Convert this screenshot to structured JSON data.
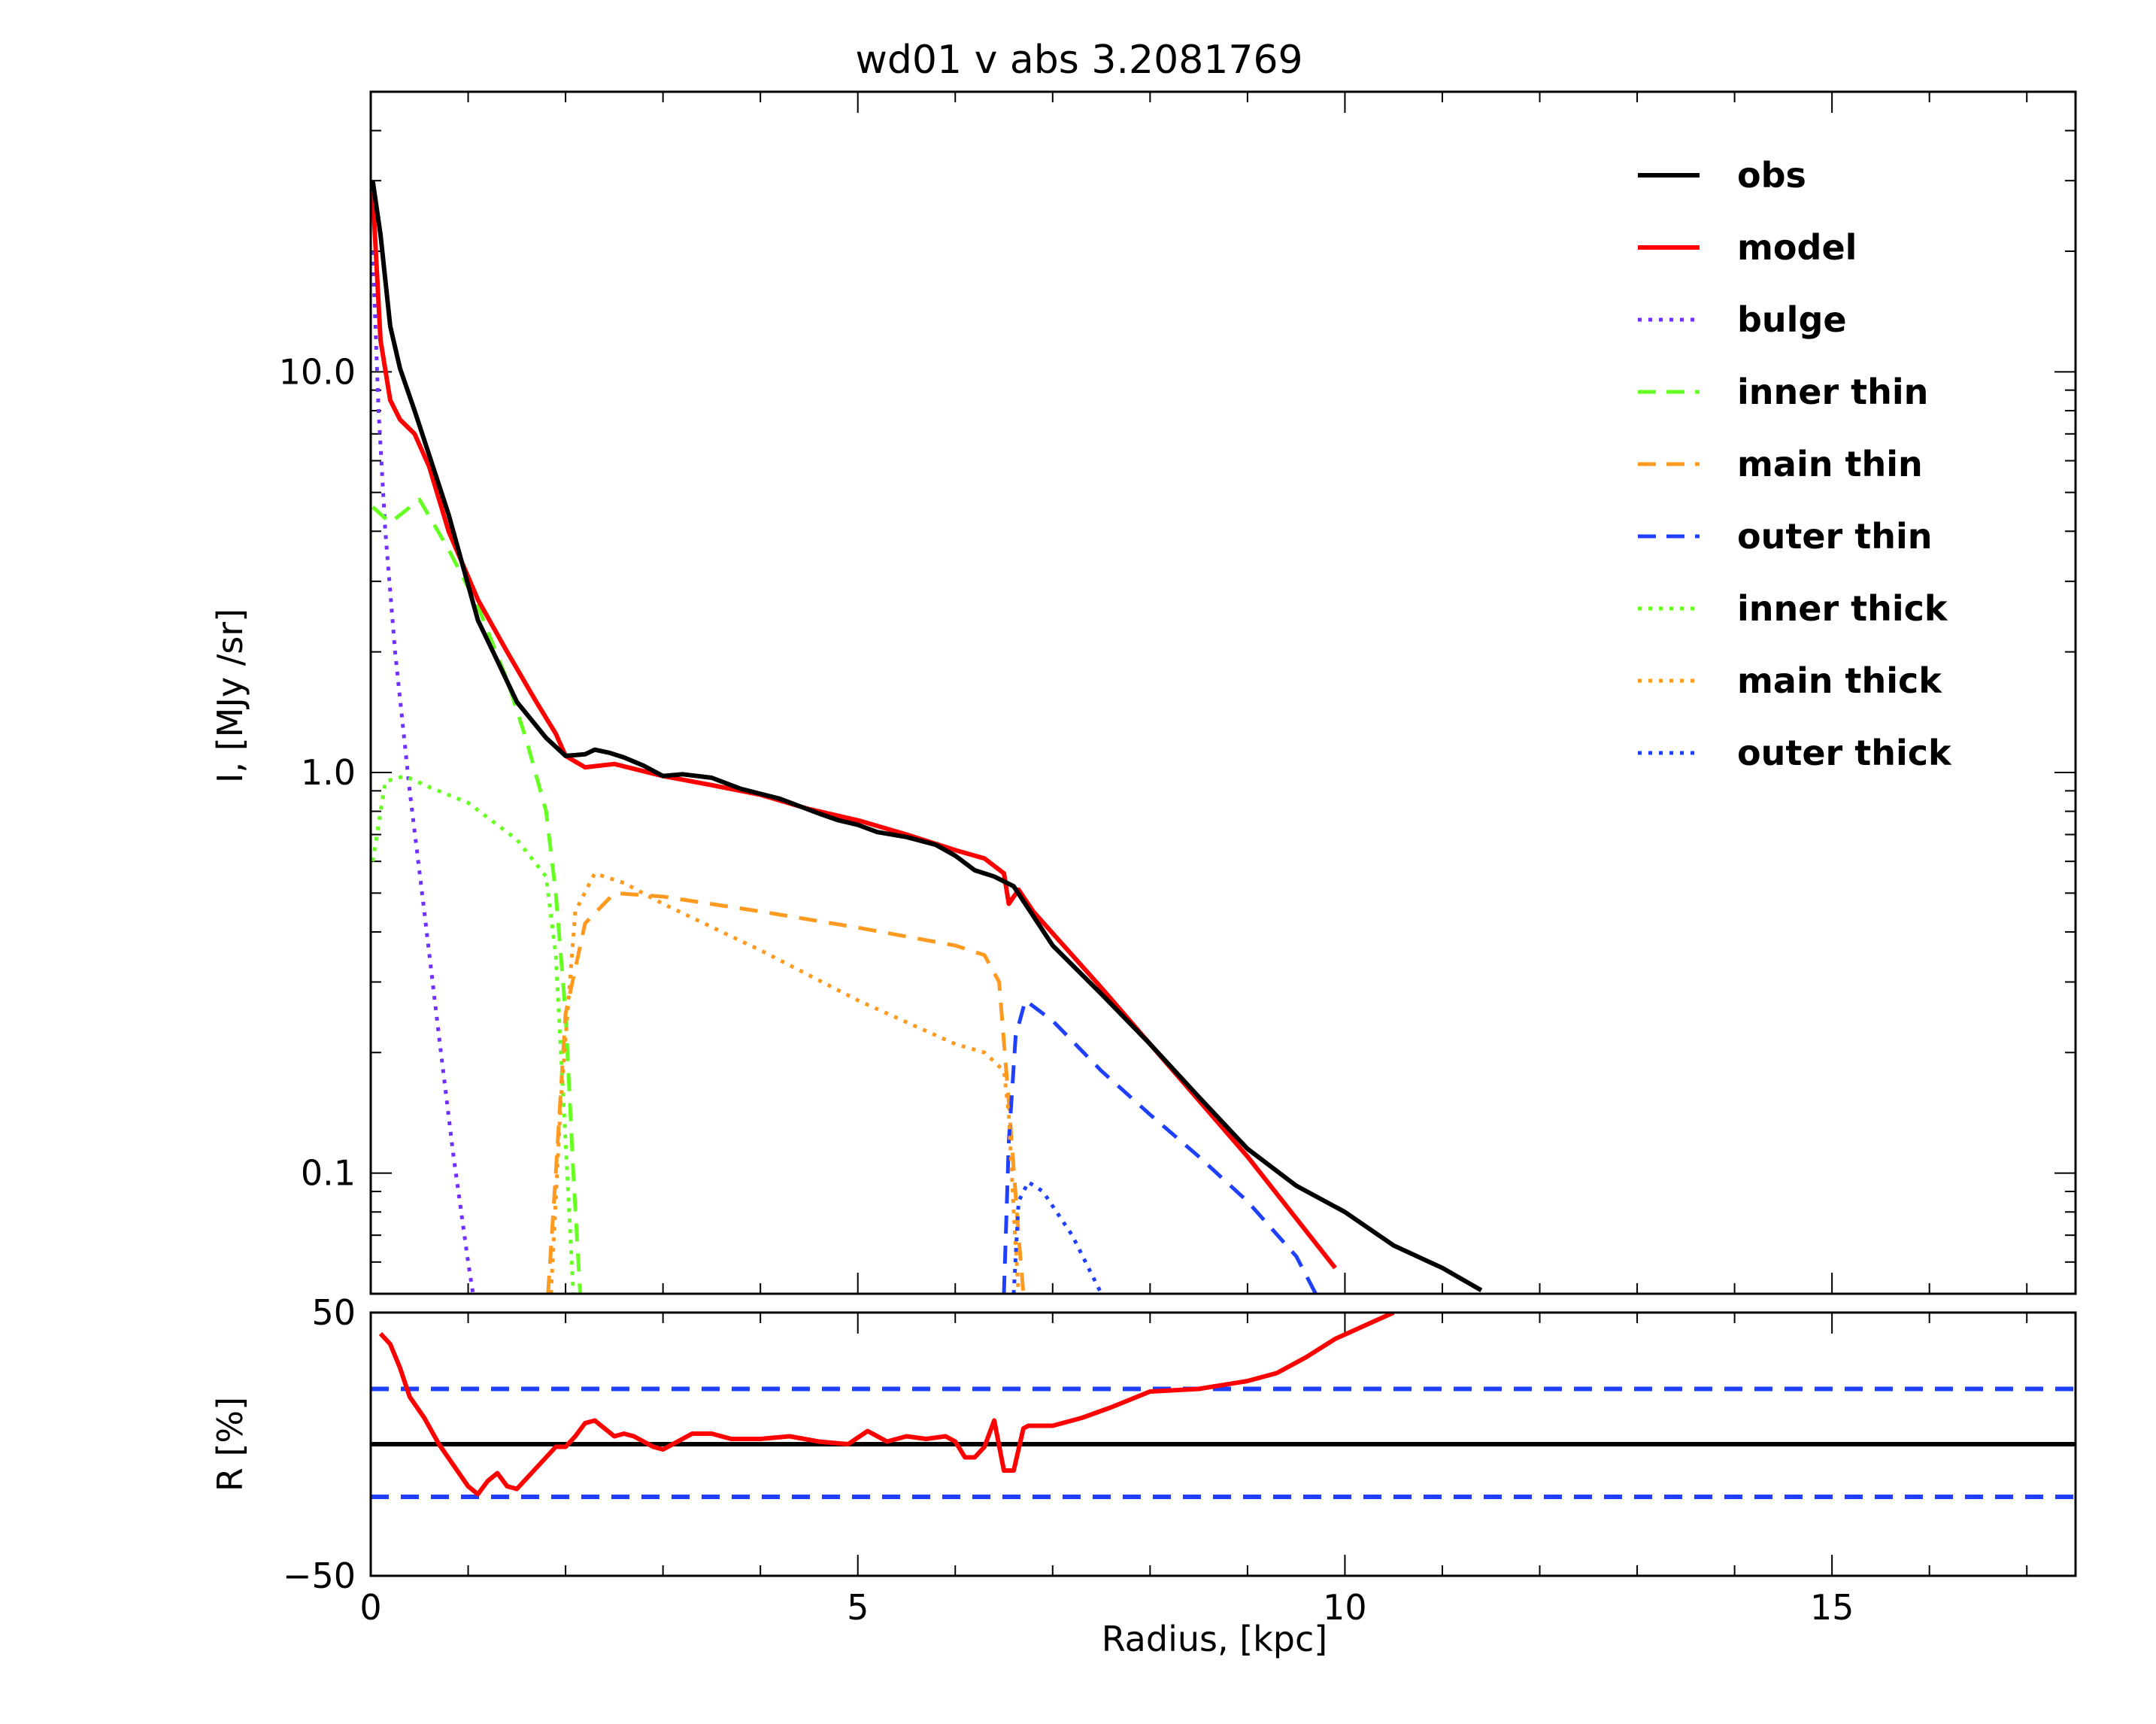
{
  "chart_data": [
    {
      "type": "line",
      "title": "wd01 v abs 3.2081769",
      "xlabel": "",
      "ylabel": "I, [MJy /sr]",
      "yscale": "log",
      "xlim": [
        0,
        17.5
      ],
      "ylim": [
        0.05,
        50
      ],
      "yticks": [
        {
          "value": 0.1,
          "label": "0.1"
        },
        {
          "value": 1.0,
          "label": "1.0"
        },
        {
          "value": 10.0,
          "label": "10.0"
        }
      ],
      "legend_position": "top-right",
      "series": [
        {
          "name": "obs",
          "color": "#000000",
          "dash": "solid",
          "x": [
            0.02,
            0.1,
            0.2,
            0.3,
            0.45,
            0.6,
            0.8,
            1.1,
            1.3,
            1.5,
            1.8,
            2.0,
            2.2,
            2.3,
            2.45,
            2.6,
            2.8,
            3.0,
            3.2,
            3.5,
            3.8,
            4.2,
            4.6,
            4.8,
            5.0,
            5.2,
            5.5,
            5.8,
            6.0,
            6.2,
            6.4,
            6.6,
            7.0,
            7.5,
            8.0,
            8.5,
            9.0,
            9.5,
            10.0,
            10.5,
            11.0,
            11.4
          ],
          "y": [
            30,
            22,
            13,
            10.2,
            8.0,
            6.2,
            4.4,
            2.4,
            1.9,
            1.5,
            1.22,
            1.1,
            1.11,
            1.14,
            1.12,
            1.09,
            1.04,
            0.98,
            0.99,
            0.97,
            0.91,
            0.86,
            0.79,
            0.76,
            0.74,
            0.71,
            0.69,
            0.66,
            0.62,
            0.57,
            0.55,
            0.52,
            0.37,
            0.28,
            0.21,
            0.155,
            0.115,
            0.093,
            0.08,
            0.066,
            0.058,
            0.051
          ]
        },
        {
          "name": "model",
          "color": "#ff0000",
          "dash": "solid",
          "x": [
            0.02,
            0.1,
            0.2,
            0.3,
            0.45,
            0.6,
            0.8,
            1.1,
            1.4,
            1.7,
            1.9,
            2.0,
            2.2,
            2.5,
            3.0,
            3.5,
            4.0,
            4.5,
            5.0,
            5.5,
            6.0,
            6.3,
            6.5,
            6.55,
            6.65,
            6.8,
            7.5,
            8.0,
            9.0,
            9.9
          ],
          "y": [
            28,
            12,
            8.5,
            7.6,
            7.0,
            5.8,
            4.0,
            2.7,
            2.0,
            1.5,
            1.25,
            1.1,
            1.03,
            1.05,
            0.98,
            0.93,
            0.88,
            0.81,
            0.76,
            0.7,
            0.64,
            0.61,
            0.56,
            0.47,
            0.51,
            0.45,
            0.29,
            0.21,
            0.11,
            0.058
          ]
        },
        {
          "name": "bulge",
          "color": "#7030ff",
          "dash": "dotted",
          "x": [
            0.02,
            0.08,
            0.15,
            0.25,
            0.4,
            0.55,
            0.7,
            0.85,
            1.0,
            1.05
          ],
          "y": [
            20,
            8,
            4,
            2.0,
            0.9,
            0.45,
            0.22,
            0.11,
            0.06,
            0.05
          ]
        },
        {
          "name": "inner thin",
          "color": "#66ff22",
          "dash": "dashed",
          "x": [
            0.02,
            0.2,
            0.5,
            0.8,
            1.1,
            1.4,
            1.6,
            1.8,
            1.9,
            2.0,
            2.08,
            2.15
          ],
          "y": [
            4.6,
            4.2,
            4.8,
            3.6,
            2.6,
            1.7,
            1.2,
            0.8,
            0.5,
            0.25,
            0.1,
            0.05
          ]
        },
        {
          "name": "main thin",
          "color": "#ff9a20",
          "dash": "dashed",
          "x": [
            1.82,
            1.9,
            2.0,
            2.2,
            2.5,
            3.0,
            4.0,
            5.0,
            6.0,
            6.3,
            6.45,
            6.55,
            6.65,
            6.7
          ],
          "y": [
            0.05,
            0.1,
            0.25,
            0.42,
            0.5,
            0.49,
            0.45,
            0.41,
            0.37,
            0.35,
            0.3,
            0.15,
            0.07,
            0.05
          ]
        },
        {
          "name": "outer thin",
          "color": "#2040ff",
          "dash": "dashed",
          "x": [
            6.5,
            6.55,
            6.62,
            6.72,
            7.0,
            7.5,
            8.0,
            8.5,
            9.0,
            9.5,
            9.7
          ],
          "y": [
            0.05,
            0.12,
            0.22,
            0.27,
            0.24,
            0.18,
            0.14,
            0.11,
            0.085,
            0.062,
            0.05
          ]
        },
        {
          "name": "inner thick",
          "color": "#66ff22",
          "dash": "dotted",
          "x": [
            0.02,
            0.15,
            0.35,
            0.6,
            1.0,
            1.5,
            1.8,
            1.9,
            2.0,
            2.08
          ],
          "y": [
            0.6,
            0.95,
            0.98,
            0.92,
            0.84,
            0.68,
            0.55,
            0.35,
            0.12,
            0.05
          ]
        },
        {
          "name": "main thick",
          "color": "#ff9a20",
          "dash": "dotted",
          "x": [
            1.85,
            1.95,
            2.1,
            2.3,
            2.6,
            3.0,
            4.0,
            5.0,
            6.0,
            6.3,
            6.5,
            6.55,
            6.6,
            6.65
          ],
          "y": [
            0.05,
            0.15,
            0.45,
            0.56,
            0.53,
            0.47,
            0.36,
            0.27,
            0.21,
            0.2,
            0.18,
            0.14,
            0.08,
            0.05
          ]
        },
        {
          "name": "outer thick",
          "color": "#2040ff",
          "dash": "dotted",
          "x": [
            6.6,
            6.65,
            6.75,
            6.9,
            7.2,
            7.5
          ],
          "y": [
            0.05,
            0.085,
            0.095,
            0.09,
            0.07,
            0.05
          ]
        }
      ]
    },
    {
      "type": "line",
      "title": "",
      "xlabel": "Radius, [kpc]",
      "ylabel": "R [%]",
      "xlim": [
        0,
        17.5
      ],
      "ylim": [
        -50,
        50
      ],
      "xticks": [
        {
          "value": 0,
          "label": "0"
        },
        {
          "value": 5,
          "label": "5"
        },
        {
          "value": 10,
          "label": "10"
        },
        {
          "value": 15,
          "label": "15"
        }
      ],
      "yticks": [
        {
          "value": 50,
          "label": "50"
        },
        {
          "value": -50,
          "label": "−50"
        }
      ],
      "reference_lines": [
        {
          "value": 0,
          "color": "#000000",
          "dash": "solid"
        },
        {
          "value": 21,
          "color": "#2040ff",
          "dash": "dashed"
        },
        {
          "value": -20,
          "color": "#2040ff",
          "dash": "dashed"
        }
      ],
      "series": [
        {
          "name": "",
          "color": "#ff0000",
          "dash": "solid",
          "x": [
            0.1,
            0.2,
            0.3,
            0.4,
            0.55,
            0.7,
            0.85,
            1.0,
            1.1,
            1.2,
            1.3,
            1.4,
            1.5,
            1.7,
            1.9,
            2.0,
            2.1,
            2.2,
            2.3,
            2.4,
            2.5,
            2.6,
            2.7,
            2.9,
            3.0,
            3.1,
            3.3,
            3.5,
            3.7,
            4.0,
            4.3,
            4.6,
            4.9,
            5.1,
            5.3,
            5.5,
            5.7,
            5.9,
            6.0,
            6.1,
            6.2,
            6.3,
            6.4,
            6.5,
            6.6,
            6.7,
            6.75,
            6.85,
            7.0,
            7.3,
            7.6,
            8.0,
            8.5,
            9.0,
            9.3,
            9.6,
            9.9,
            10.2,
            10.5
          ],
          "y": [
            42,
            38,
            29,
            18,
            10,
            0,
            -8,
            -16,
            -19,
            -14,
            -11,
            -16,
            -17,
            -9,
            -1,
            -1,
            3,
            8,
            9,
            6,
            3,
            4,
            3,
            -1,
            -2,
            0,
            4,
            4,
            2,
            2,
            3,
            1,
            0,
            5,
            1,
            3,
            2,
            3,
            1,
            -5,
            -5,
            -1,
            9,
            -10,
            -10,
            6,
            7,
            7,
            7,
            10,
            14,
            20,
            21,
            24,
            27,
            33,
            40,
            45,
            50
          ]
        }
      ]
    }
  ]
}
